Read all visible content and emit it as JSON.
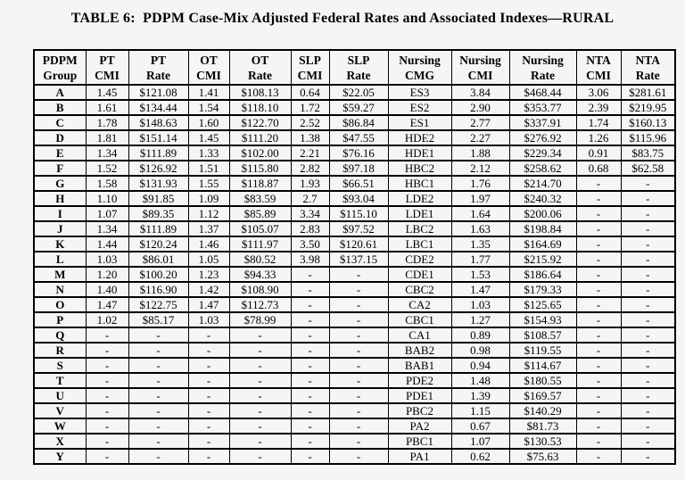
{
  "title": "TABLE 6:  PDPM Case-Mix Adjusted Federal Rates and Associated Indexes—RURAL",
  "table": {
    "columns": [
      "PDPM\nGroup",
      "PT\nCMI",
      "PT\nRate",
      "OT\nCMI",
      "OT\nRate",
      "SLP\nCMI",
      "SLP\nRate",
      "Nursing\nCMG",
      "Nursing\nCMI",
      "Nursing\nRate",
      "NTA\nCMI",
      "NTA\nRate"
    ],
    "rows": [
      [
        "A",
        "1.45",
        "$121.08",
        "1.41",
        "$108.13",
        "0.64",
        "$22.05",
        "ES3",
        "3.84",
        "$468.44",
        "3.06",
        "$281.61"
      ],
      [
        "B",
        "1.61",
        "$134.44",
        "1.54",
        "$118.10",
        "1.72",
        "$59.27",
        "ES2",
        "2.90",
        "$353.77",
        "2.39",
        "$219.95"
      ],
      [
        "C",
        "1.78",
        "$148.63",
        "1.60",
        "$122.70",
        "2.52",
        "$86.84",
        "ES1",
        "2.77",
        "$337.91",
        "1.74",
        "$160.13"
      ],
      [
        "D",
        "1.81",
        "$151.14",
        "1.45",
        "$111.20",
        "1.38",
        "$47.55",
        "HDE2",
        "2.27",
        "$276.92",
        "1.26",
        "$115.96"
      ],
      [
        "E",
        "1.34",
        "$111.89",
        "1.33",
        "$102.00",
        "2.21",
        "$76.16",
        "HDE1",
        "1.88",
        "$229.34",
        "0.91",
        "$83.75"
      ],
      [
        "F",
        "1.52",
        "$126.92",
        "1.51",
        "$115.80",
        "2.82",
        "$97.18",
        "HBC2",
        "2.12",
        "$258.62",
        "0.68",
        "$62.58"
      ],
      [
        "G",
        "1.58",
        "$131.93",
        "1.55",
        "$118.87",
        "1.93",
        "$66.51",
        "HBC1",
        "1.76",
        "$214.70",
        "-",
        "-"
      ],
      [
        "H",
        "1.10",
        "$91.85",
        "1.09",
        "$83.59",
        "2.7",
        "$93.04",
        "LDE2",
        "1.97",
        "$240.32",
        "-",
        "-"
      ],
      [
        "I",
        "1.07",
        "$89.35",
        "1.12",
        "$85.89",
        "3.34",
        "$115.10",
        "LDE1",
        "1.64",
        "$200.06",
        "-",
        "-"
      ],
      [
        "J",
        "1.34",
        "$111.89",
        "1.37",
        "$105.07",
        "2.83",
        "$97.52",
        "LBC2",
        "1.63",
        "$198.84",
        "-",
        "-"
      ],
      [
        "K",
        "1.44",
        "$120.24",
        "1.46",
        "$111.97",
        "3.50",
        "$120.61",
        "LBC1",
        "1.35",
        "$164.69",
        "-",
        "-"
      ],
      [
        "L",
        "1.03",
        "$86.01",
        "1.05",
        "$80.52",
        "3.98",
        "$137.15",
        "CDE2",
        "1.77",
        "$215.92",
        "-",
        "-"
      ],
      [
        "M",
        "1.20",
        "$100.20",
        "1.23",
        "$94.33",
        "-",
        "-",
        "CDE1",
        "1.53",
        "$186.64",
        "-",
        "-"
      ],
      [
        "N",
        "1.40",
        "$116.90",
        "1.42",
        "$108.90",
        "-",
        "-",
        "CBC2",
        "1.47",
        "$179.33",
        "-",
        "-"
      ],
      [
        "O",
        "1.47",
        "$122.75",
        "1.47",
        "$112.73",
        "-",
        "-",
        "CA2",
        "1.03",
        "$125.65",
        "-",
        "-"
      ],
      [
        "P",
        "1.02",
        "$85.17",
        "1.03",
        "$78.99",
        "-",
        "-",
        "CBC1",
        "1.27",
        "$154.93",
        "-",
        "-"
      ],
      [
        "Q",
        "-",
        "-",
        "-",
        "-",
        "-",
        "-",
        "CA1",
        "0.89",
        "$108.57",
        "-",
        "-"
      ],
      [
        "R",
        "-",
        "-",
        "-",
        "-",
        "-",
        "-",
        "BAB2",
        "0.98",
        "$119.55",
        "-",
        "-"
      ],
      [
        "S",
        "-",
        "-",
        "-",
        "-",
        "-",
        "-",
        "BAB1",
        "0.94",
        "$114.67",
        "-",
        "-"
      ],
      [
        "T",
        "-",
        "-",
        "-",
        "-",
        "-",
        "-",
        "PDE2",
        "1.48",
        "$180.55",
        "-",
        "-"
      ],
      [
        "U",
        "-",
        "-",
        "-",
        "-",
        "-",
        "-",
        "PDE1",
        "1.39",
        "$169.57",
        "-",
        "-"
      ],
      [
        "V",
        "-",
        "-",
        "-",
        "-",
        "-",
        "-",
        "PBC2",
        "1.15",
        "$140.29",
        "-",
        "-"
      ],
      [
        "W",
        "-",
        "-",
        "-",
        "-",
        "-",
        "-",
        "PA2",
        "0.67",
        "$81.73",
        "-",
        "-"
      ],
      [
        "X",
        "-",
        "-",
        "-",
        "-",
        "-",
        "-",
        "PBC1",
        "1.07",
        "$130.53",
        "-",
        "-"
      ],
      [
        "Y",
        "-",
        "-",
        "-",
        "-",
        "-",
        "-",
        "PA1",
        "0.62",
        "$75.63",
        "-",
        "-"
      ]
    ]
  }
}
